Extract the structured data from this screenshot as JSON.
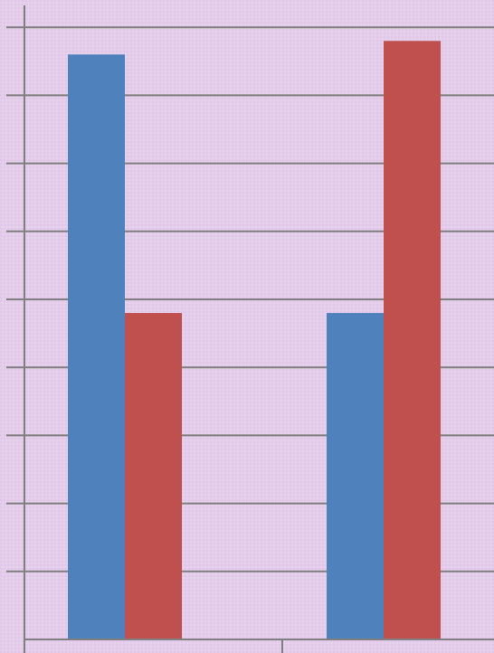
{
  "chart_data": {
    "type": "bar",
    "title": "",
    "xlabel": "",
    "ylabel": "",
    "categories": [
      "",
      ""
    ],
    "ylim": [
      0,
      9
    ],
    "grid": true,
    "series": [
      {
        "color": "#4f81bd",
        "values": [
          8.6,
          4.8
        ]
      },
      {
        "color": "#c0504d",
        "values": [
          4.8,
          8.8
        ]
      }
    ]
  },
  "colors": {
    "background": "#e4cdea",
    "grid": "#7f7f7f",
    "axis": "#7f7f7f"
  }
}
